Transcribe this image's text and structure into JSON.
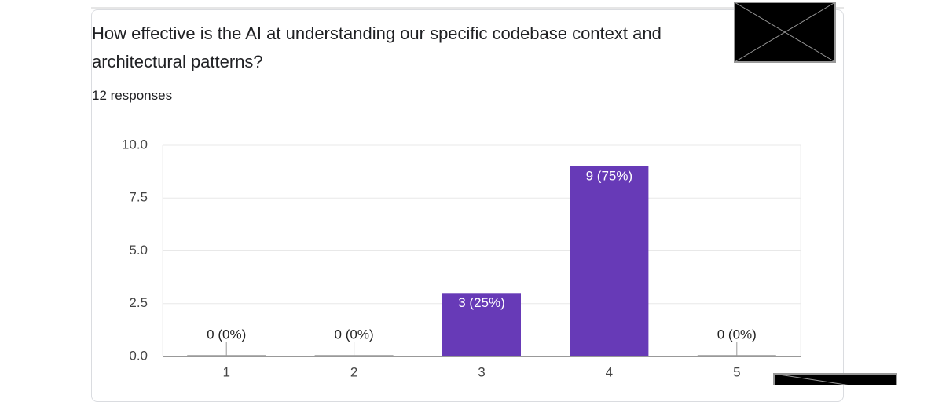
{
  "chart_data": {
    "type": "bar",
    "title": "How effective is the AI at understanding our specific codebase context and architectural patterns?",
    "subtitle": "12 responses",
    "categories": [
      "1",
      "2",
      "3",
      "4",
      "5"
    ],
    "values": [
      0,
      0,
      3,
      9,
      0
    ],
    "value_labels": [
      "0 (0%)",
      "0 (0%)",
      "3 (25%)",
      "9 (75%)",
      "0 (0%)"
    ],
    "color": "#673ab7",
    "ylim": [
      0,
      10
    ],
    "yticks": [
      {
        "value": 0,
        "label": "0.0"
      },
      {
        "value": 2.5,
        "label": "2.5"
      },
      {
        "value": 5,
        "label": "5.0"
      },
      {
        "value": 7.5,
        "label": "7.5"
      },
      {
        "value": 10,
        "label": "10.0"
      }
    ],
    "grid": true
  }
}
